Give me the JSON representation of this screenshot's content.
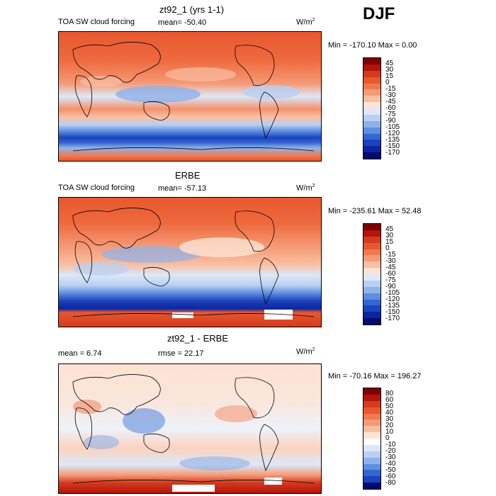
{
  "season": "DJF",
  "panels": [
    {
      "title": "zt92_1 (yrs 1-1)",
      "left_label": "TOA SW cloud forcing",
      "mid_label": "mean= -50.40",
      "units": "W/m",
      "units_exp": "2",
      "minmax": "Min = -170.10 Max =    0.00",
      "colorbar": {
        "ticks": [
          "45",
          "30",
          "15",
          "0",
          "-15",
          "-30",
          "-45",
          "-60",
          "-75",
          "-90",
          "-105",
          "-120",
          "-135",
          "-150",
          "-170"
        ],
        "colors": [
          "#7f0000",
          "#b3140c",
          "#d43a1e",
          "#e8582f",
          "#f07a4f",
          "#f59a76",
          "#f9bfa2",
          "#fde3d3",
          "#dce8f8",
          "#b8d0f2",
          "#8fb2ea",
          "#5f8de0",
          "#3566d2",
          "#1a43bd",
          "#0c259e",
          "#000b6e"
        ]
      }
    },
    {
      "title": "ERBE",
      "left_label": "TOA SW cloud forcing",
      "mid_label": "mean= -57.13",
      "units": "W/m",
      "units_exp": "2",
      "minmax": "Min = -235.61 Max =   52.48",
      "colorbar": {
        "ticks": [
          "45",
          "30",
          "15",
          "0",
          "-15",
          "-30",
          "-45",
          "-60",
          "-75",
          "-90",
          "-105",
          "-120",
          "-135",
          "-150",
          "-170"
        ],
        "colors": [
          "#7f0000",
          "#b3140c",
          "#d43a1e",
          "#e8582f",
          "#f07a4f",
          "#f59a76",
          "#f9bfa2",
          "#fde3d3",
          "#dce8f8",
          "#b8d0f2",
          "#8fb2ea",
          "#5f8de0",
          "#3566d2",
          "#1a43bd",
          "#0c259e",
          "#000b6e"
        ]
      }
    },
    {
      "title": "zt92_1 - ERBE",
      "left_label": "mean =    6.74",
      "mid_label": "rmse =   22.17",
      "units": "W/m",
      "units_exp": "2",
      "minmax": "Min = -70.16 Max = 196.27",
      "colorbar": {
        "ticks": [
          "80",
          "60",
          "50",
          "40",
          "30",
          "20",
          "10",
          "0",
          "-10",
          "-20",
          "-30",
          "-40",
          "-50",
          "-60",
          "-80"
        ],
        "colors": [
          "#7f0000",
          "#b3140c",
          "#d43a1e",
          "#e8582f",
          "#f07a4f",
          "#f59a76",
          "#f9bfa2",
          "#fde3d3",
          "#ffffff",
          "#dce8f8",
          "#b8d0f2",
          "#8fb2ea",
          "#5f8de0",
          "#3566d2",
          "#1a43bd",
          "#000b6e"
        ]
      }
    }
  ]
}
